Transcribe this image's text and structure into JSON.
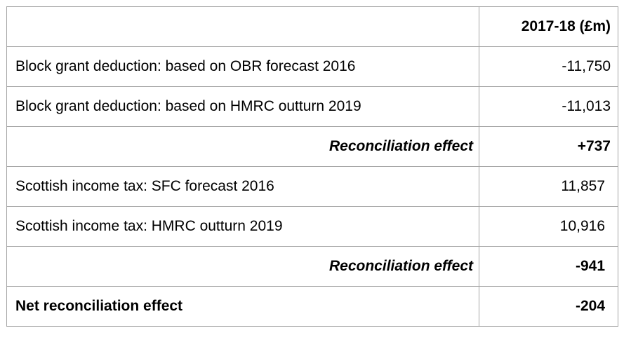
{
  "table": {
    "header": {
      "label": "",
      "value": "2017-18 (£m)"
    },
    "rows": [
      {
        "label": "Block grant deduction: based on OBR forecast 2016",
        "value": "-11,750",
        "style": "normal"
      },
      {
        "label": "Block grant deduction: based on HMRC outturn 2019",
        "value": "-11,013",
        "style": "normal"
      },
      {
        "label": "Reconciliation effect",
        "value": "+737",
        "style": "subtotal"
      },
      {
        "label": "Scottish income tax: SFC forecast 2016",
        "value": "11,857",
        "style": "normal-inset"
      },
      {
        "label": "Scottish income tax: HMRC outturn 2019",
        "value": "10,916",
        "style": "normal-inset"
      },
      {
        "label": "Reconciliation effect",
        "value": "-941",
        "style": "subtotal-inset"
      },
      {
        "label": "Net reconciliation effect",
        "value": "-204",
        "style": "total-inset"
      }
    ]
  },
  "colors": {
    "border": "#a6a6a6",
    "text": "#000000",
    "background": "#ffffff"
  }
}
